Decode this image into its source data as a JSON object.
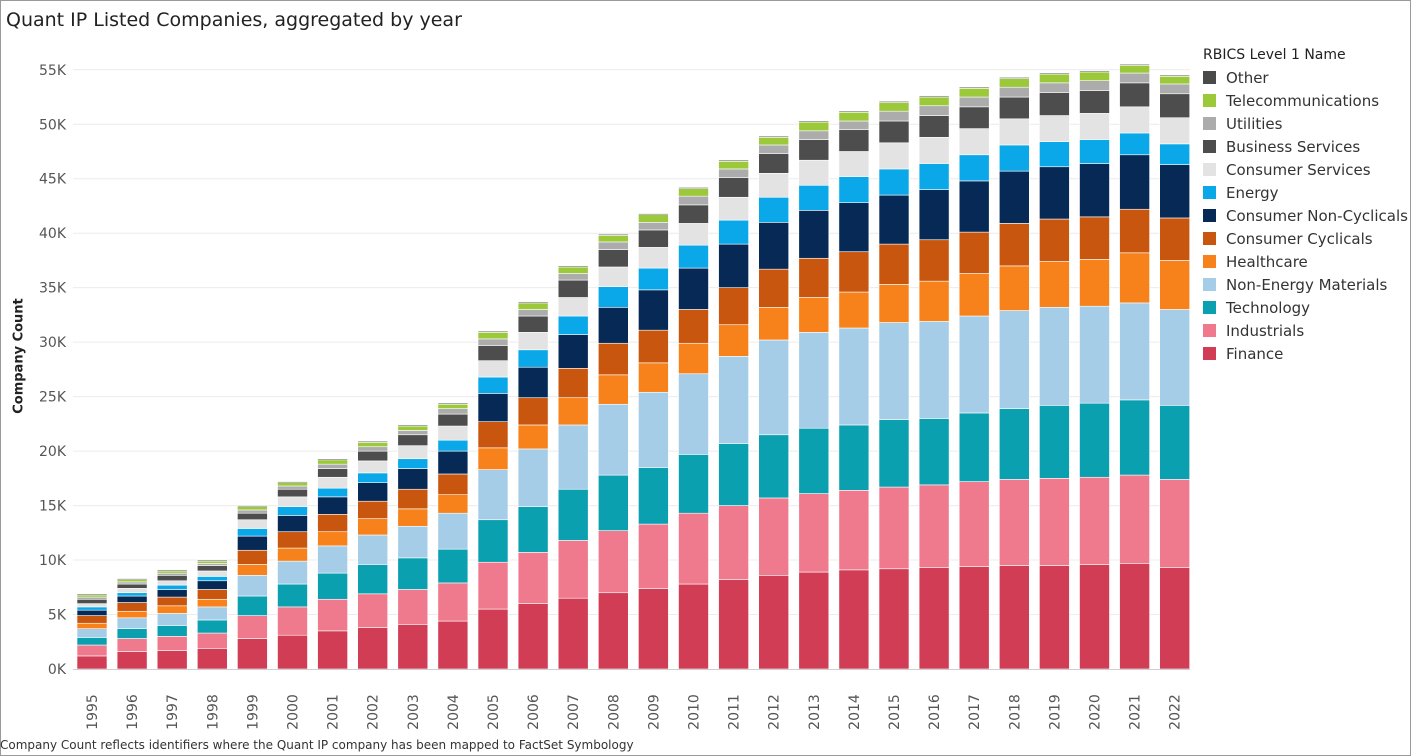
{
  "page": {
    "title": "Quant IP Listed Companies, aggregated by year",
    "footnote": "Company Count reflects identifiers where the Quant IP company has been mapped to FactSet Symbology"
  },
  "chart_data": {
    "type": "bar",
    "stacked": true,
    "title": "Quant IP Listed Companies, aggregated by year",
    "xlabel": "",
    "ylabel": "Company Count",
    "ylim": [
      0,
      57000
    ],
    "y_ticks": [
      0,
      5000,
      10000,
      15000,
      20000,
      25000,
      30000,
      35000,
      40000,
      45000,
      50000,
      55000
    ],
    "y_tick_labels": [
      "0K",
      "5K",
      "10K",
      "15K",
      "20K",
      "25K",
      "30K",
      "35K",
      "40K",
      "45K",
      "50K",
      "55K"
    ],
    "grid": "horizontal",
    "legend_title": "RBICS Level 1 Name",
    "legend_position": "right",
    "categories": [
      "1995",
      "1996",
      "1997",
      "1998",
      "1999",
      "2000",
      "2001",
      "2002",
      "2003",
      "2004",
      "2005",
      "2006",
      "2007",
      "2008",
      "2009",
      "2010",
      "2011",
      "2012",
      "2013",
      "2014",
      "2015",
      "2016",
      "2017",
      "2018",
      "2019",
      "2020",
      "2021",
      "2022"
    ],
    "series": [
      {
        "name": "Finance",
        "color": "#d13d55",
        "values": [
          1200,
          1600,
          1700,
          1900,
          2800,
          3100,
          3500,
          3800,
          4100,
          4400,
          5500,
          6000,
          6500,
          7000,
          7400,
          7800,
          8200,
          8600,
          8900,
          9100,
          9200,
          9300,
          9400,
          9500,
          9500,
          9600,
          9700,
          9300
        ]
      },
      {
        "name": "Industrials",
        "color": "#ef7a8e",
        "values": [
          1000,
          1200,
          1300,
          1400,
          2100,
          2600,
          2900,
          3100,
          3200,
          3500,
          4300,
          4700,
          5300,
          5700,
          5900,
          6500,
          6800,
          7100,
          7200,
          7300,
          7500,
          7600,
          7800,
          7900,
          8000,
          8000,
          8100,
          8100
        ]
      },
      {
        "name": "Technology",
        "color": "#0aa0b0",
        "values": [
          700,
          900,
          1000,
          1200,
          1800,
          2100,
          2400,
          2700,
          2900,
          3100,
          3900,
          4200,
          4700,
          5100,
          5200,
          5400,
          5700,
          5800,
          6000,
          6000,
          6200,
          6100,
          6300,
          6500,
          6700,
          6800,
          6900,
          6800
        ]
      },
      {
        "name": "Non-Energy Materials",
        "color": "#a6cde8",
        "values": [
          800,
          1000,
          1100,
          1200,
          1900,
          2100,
          2500,
          2700,
          2900,
          3300,
          4600,
          5300,
          5900,
          6500,
          6900,
          7400,
          8000,
          8700,
          8800,
          8900,
          8900,
          8900,
          8900,
          9000,
          9000,
          8900,
          8900,
          8800
        ]
      },
      {
        "name": "Healthcare",
        "color": "#f7821b",
        "values": [
          500,
          600,
          700,
          700,
          1000,
          1200,
          1300,
          1500,
          1600,
          1700,
          2000,
          2200,
          2500,
          2700,
          2700,
          2800,
          2900,
          3000,
          3200,
          3300,
          3500,
          3700,
          3900,
          4100,
          4200,
          4300,
          4600,
          4500
        ]
      },
      {
        "name": "Consumer Cyclicals",
        "color": "#c8560e",
        "values": [
          700,
          800,
          800,
          900,
          1300,
          1500,
          1600,
          1600,
          1800,
          1900,
          2400,
          2500,
          2700,
          2900,
          3000,
          3100,
          3400,
          3500,
          3600,
          3700,
          3700,
          3800,
          3800,
          3900,
          3900,
          3900,
          4000,
          3900
        ]
      },
      {
        "name": "Consumer Non-Cyclicals",
        "color": "#062a55",
        "values": [
          500,
          600,
          700,
          800,
          1300,
          1500,
          1600,
          1700,
          1900,
          2100,
          2600,
          2800,
          3100,
          3300,
          3700,
          3800,
          4000,
          4300,
          4400,
          4500,
          4500,
          4600,
          4700,
          4800,
          4800,
          4900,
          5000,
          4900
        ]
      },
      {
        "name": "Energy",
        "color": "#0aa8e8",
        "values": [
          300,
          300,
          400,
          400,
          700,
          800,
          800,
          900,
          900,
          1000,
          1500,
          1600,
          1700,
          1900,
          2000,
          2100,
          2200,
          2300,
          2300,
          2400,
          2400,
          2400,
          2400,
          2400,
          2300,
          2200,
          2000,
          1900
        ]
      },
      {
        "name": "Consumer Services",
        "color": "#e3e3e3",
        "values": [
          300,
          400,
          400,
          500,
          800,
          900,
          1000,
          1100,
          1200,
          1300,
          1500,
          1600,
          1700,
          1800,
          1900,
          2000,
          2100,
          2200,
          2300,
          2300,
          2400,
          2400,
          2400,
          2400,
          2400,
          2400,
          2400,
          2400
        ]
      },
      {
        "name": "Business Services",
        "color": "#4d4d4d",
        "values": [
          400,
          400,
          500,
          500,
          600,
          700,
          800,
          900,
          1000,
          1100,
          1400,
          1500,
          1600,
          1600,
          1600,
          1700,
          1800,
          1800,
          1900,
          2000,
          2000,
          2000,
          2000,
          2000,
          2100,
          2100,
          2200,
          2200
        ]
      },
      {
        "name": "Utilities",
        "color": "#acacac",
        "values": [
          200,
          200,
          200,
          200,
          300,
          300,
          400,
          400,
          400,
          500,
          600,
          600,
          600,
          700,
          700,
          800,
          800,
          800,
          800,
          800,
          900,
          900,
          900,
          900,
          900,
          900,
          900,
          900
        ]
      },
      {
        "name": "Telecommunications",
        "color": "#9cc93a",
        "values": [
          200,
          200,
          200,
          200,
          300,
          300,
          400,
          400,
          400,
          400,
          600,
          600,
          600,
          600,
          700,
          700,
          700,
          700,
          800,
          800,
          800,
          800,
          800,
          800,
          800,
          800,
          700,
          700
        ]
      },
      {
        "name": "Other",
        "color": "#4a4a4a",
        "values": [
          100,
          100,
          100,
          100,
          100,
          100,
          100,
          100,
          100,
          100,
          100,
          100,
          100,
          100,
          100,
          100,
          100,
          100,
          100,
          100,
          100,
          100,
          100,
          100,
          100,
          100,
          100,
          100
        ]
      }
    ]
  },
  "legend": {
    "title": "RBICS Level 1 Name",
    "items": [
      {
        "label": "Other",
        "color": "#4a4a4a"
      },
      {
        "label": "Telecommunications",
        "color": "#9cc93a"
      },
      {
        "label": "Utilities",
        "color": "#acacac"
      },
      {
        "label": "Business Services",
        "color": "#4d4d4d"
      },
      {
        "label": "Consumer Services",
        "color": "#e3e3e3"
      },
      {
        "label": "Energy",
        "color": "#0aa8e8"
      },
      {
        "label": "Consumer Non-Cyclicals",
        "color": "#062a55"
      },
      {
        "label": "Consumer Cyclicals",
        "color": "#c8560e"
      },
      {
        "label": "Healthcare",
        "color": "#f7821b"
      },
      {
        "label": "Non-Energy Materials",
        "color": "#a6cde8"
      },
      {
        "label": "Technology",
        "color": "#0aa0b0"
      },
      {
        "label": "Industrials",
        "color": "#ef7a8e"
      },
      {
        "label": "Finance",
        "color": "#d13d55"
      }
    ]
  }
}
